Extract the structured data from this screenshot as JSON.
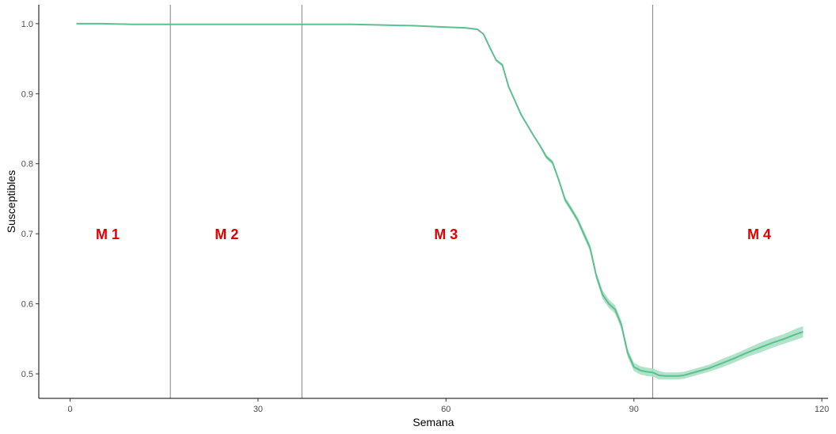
{
  "chart_data": {
    "type": "line",
    "title": "",
    "xlabel": "Semana",
    "ylabel": "Susceptibles",
    "xlim": [
      -5,
      121
    ],
    "ylim": [
      0.465,
      1.027
    ],
    "grid": false,
    "x_ticks": [
      0,
      30,
      60,
      90,
      120
    ],
    "x_tick_labels": [
      "0",
      "30",
      "60",
      "90",
      "120"
    ],
    "y_ticks": [
      0.5,
      0.6,
      0.7,
      0.8,
      0.9,
      1.0
    ],
    "y_tick_labels": [
      "0.5",
      "0.6",
      "0.7",
      "0.8",
      "0.9",
      "1.0"
    ],
    "vertical_lines": [
      16,
      37,
      93
    ],
    "region_labels": [
      {
        "text": "M 1",
        "x": 6,
        "y": 0.7
      },
      {
        "text": "M 2",
        "x": 25,
        "y": 0.7
      },
      {
        "text": "M 3",
        "x": 60,
        "y": 0.7
      },
      {
        "text": "M 4",
        "x": 110,
        "y": 0.7
      }
    ],
    "series": [
      {
        "x": [
          1,
          5,
          10,
          15,
          20,
          25,
          30,
          35,
          40,
          45,
          50,
          55,
          60,
          63,
          65,
          66,
          67,
          68,
          69,
          70,
          71,
          72,
          73,
          74,
          75,
          76,
          77,
          78,
          79,
          80,
          81,
          82,
          83,
          84,
          85,
          86,
          87,
          88,
          89,
          90,
          91,
          92,
          93,
          94,
          95,
          96,
          97,
          98,
          100,
          102,
          104,
          106,
          108,
          110,
          112,
          114,
          116,
          117
        ],
        "y": [
          1.0,
          1.0,
          0.999,
          0.999,
          0.999,
          0.999,
          0.999,
          0.999,
          0.999,
          0.999,
          0.998,
          0.997,
          0.995,
          0.994,
          0.992,
          0.985,
          0.966,
          0.948,
          0.941,
          0.91,
          0.89,
          0.87,
          0.855,
          0.84,
          0.826,
          0.81,
          0.802,
          0.777,
          0.749,
          0.735,
          0.72,
          0.7,
          0.68,
          0.64,
          0.613,
          0.6,
          0.592,
          0.57,
          0.53,
          0.51,
          0.505,
          0.503,
          0.502,
          0.498,
          0.497,
          0.497,
          0.497,
          0.498,
          0.503,
          0.508,
          0.515,
          0.522,
          0.53,
          0.537,
          0.544,
          0.55,
          0.557,
          0.56
        ],
        "band": [
          0,
          0,
          0,
          0,
          0,
          0,
          0,
          0,
          0,
          0,
          0,
          0,
          0,
          0,
          0,
          0.001,
          0.001,
          0.002,
          0.002,
          0.002,
          0.002,
          0.002,
          0.002,
          0.002,
          0.002,
          0.003,
          0.003,
          0.003,
          0.004,
          0.004,
          0.004,
          0.005,
          0.005,
          0.005,
          0.006,
          0.006,
          0.006,
          0.006,
          0.006,
          0.006,
          0.006,
          0.006,
          0.006,
          0.006,
          0.005,
          0.005,
          0.005,
          0.005,
          0.005,
          0.005,
          0.006,
          0.006,
          0.006,
          0.007,
          0.007,
          0.007,
          0.008,
          0.008
        ]
      }
    ]
  },
  "colors": {
    "line": "#5cc08e",
    "band": "#a8e0c4",
    "vline": "#808080",
    "axis": "#000000",
    "region_label": "#e00000"
  }
}
